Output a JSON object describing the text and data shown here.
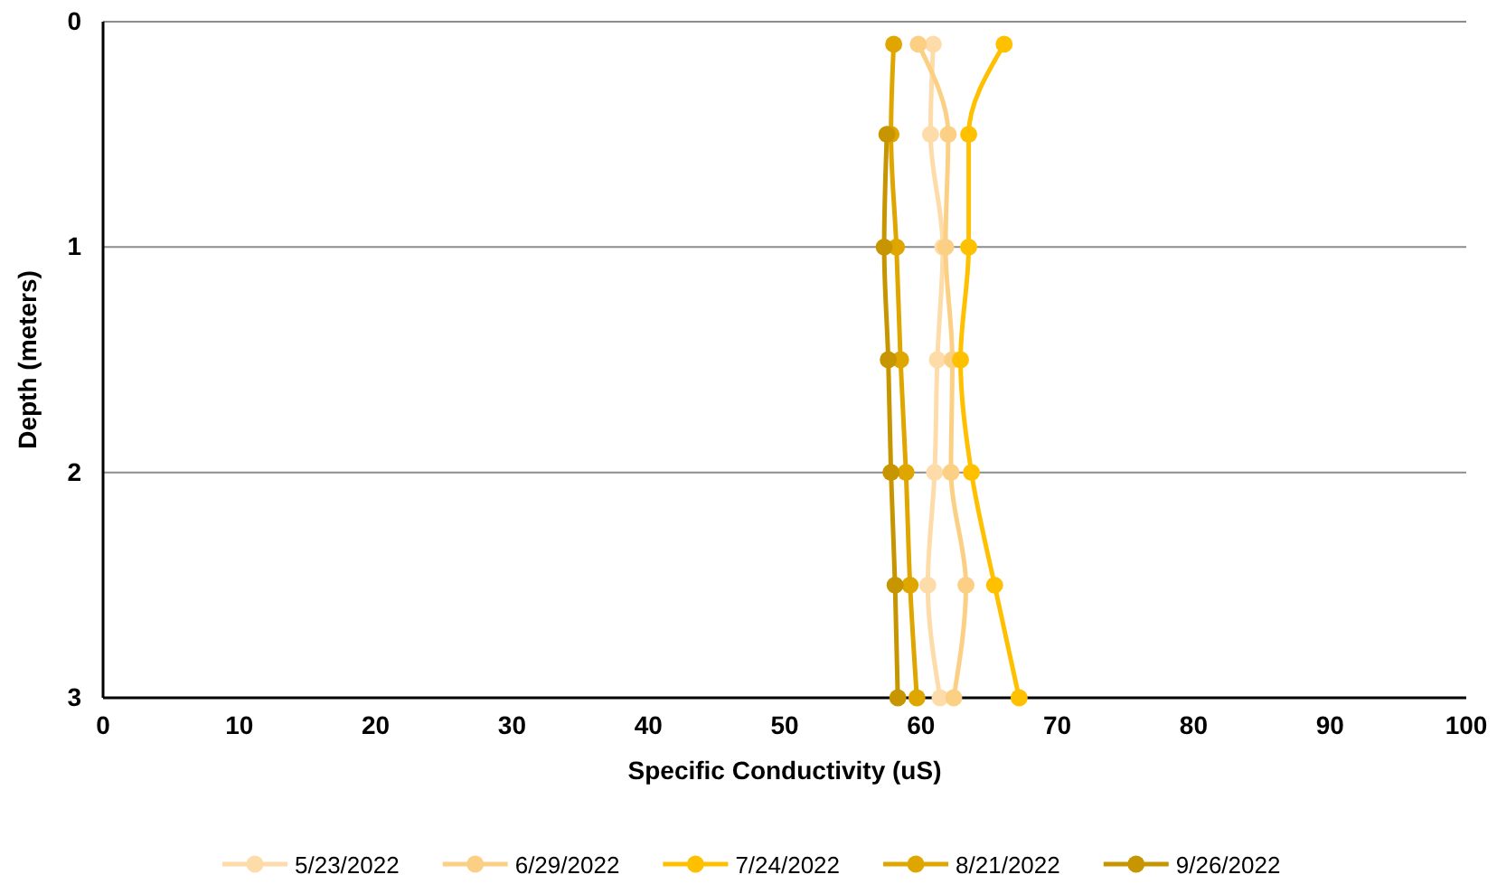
{
  "chart_data": {
    "type": "line",
    "xlabel": "Specific Conductivity (uS)",
    "ylabel": "Depth (meters)",
    "xlim": [
      0,
      100
    ],
    "xticks": [
      0,
      10,
      20,
      30,
      40,
      50,
      60,
      70,
      80,
      90,
      100
    ],
    "ylim": [
      3,
      0
    ],
    "yticks": [
      0,
      1,
      2,
      3
    ],
    "grid": "y",
    "legend": "bottom",
    "marker": "circle",
    "series": [
      {
        "name": "5/23/2022",
        "color": "#fddcaa",
        "x": [
          60.9,
          60.7,
          61.6,
          61.2,
          61.0,
          60.5,
          61.4
        ],
        "values": [
          0.1,
          0.5,
          1,
          1.5,
          2,
          2.5,
          3
        ]
      },
      {
        "name": "6/29/2022",
        "color": "#fcd084",
        "x": [
          59.8,
          62.0,
          61.8,
          62.3,
          62.2,
          63.3,
          62.4
        ],
        "values": [
          0.1,
          0.5,
          1,
          1.5,
          2,
          2.5,
          3
        ]
      },
      {
        "name": "7/24/2022",
        "color": "#ffc000",
        "x": [
          66.1,
          63.5,
          63.5,
          62.9,
          63.7,
          65.4,
          67.2
        ],
        "values": [
          0.1,
          0.5,
          1,
          1.5,
          2,
          2.5,
          3
        ]
      },
      {
        "name": "8/21/2022",
        "color": "#dfa600",
        "x": [
          58.0,
          57.8,
          58.2,
          58.5,
          58.9,
          59.2,
          59.7
        ],
        "values": [
          0.1,
          0.5,
          1,
          1.5,
          2,
          2.5,
          3
        ]
      },
      {
        "name": "9/26/2022",
        "color": "#c69500",
        "x": [
          57.5,
          57.3,
          57.6,
          57.8,
          58.1,
          58.3
        ],
        "values": [
          0.5,
          1,
          1.5,
          2,
          2.5,
          3
        ]
      }
    ]
  }
}
